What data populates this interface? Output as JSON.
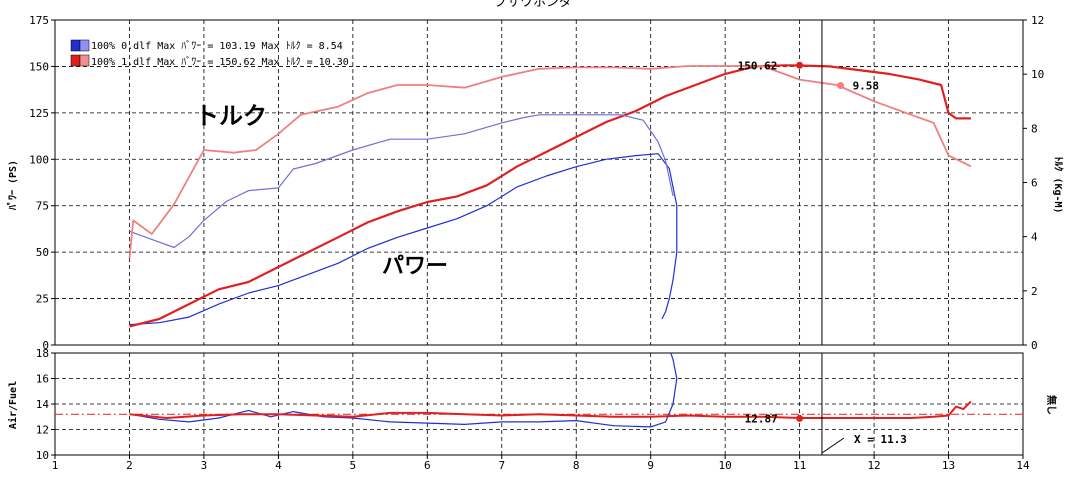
{
  "chart_data": [
    {
      "type": "line",
      "title": "ブサワホンダ",
      "ylabel_left": "ﾊﾟﾜｰ (PS)",
      "ylabel_right": "ﾄﾙｸ (Kg-M)",
      "ylim_left": [
        0,
        175
      ],
      "ylim_right": [
        0,
        12
      ],
      "xlim": [
        1,
        14
      ],
      "grid": true,
      "legend_position": "top-left",
      "legend": [
        {
          "label": "100% 0.dlf Max ﾊﾟﾜｰ = 103.19   Max ﾄﾙｸ = 8.54",
          "color": "#2030d0"
        },
        {
          "label": "100% 1.dlf Max ﾊﾟﾜｰ = 150.62   Max ﾄﾙｸ = 10.30",
          "color": "#e02020"
        }
      ],
      "annotations": {
        "torque_label": "トルク",
        "power_label": "パワー",
        "marker_power": "150.62",
        "marker_torque": "9.58"
      },
      "series": [
        {
          "name": "100% 0.dlf Max ﾊﾟﾜｰ = 103.19",
          "axis": "left",
          "color": "#2030d0",
          "x": [
            2.0,
            2.4,
            2.8,
            3.2,
            3.6,
            4.0,
            4.4,
            4.8,
            5.2,
            5.6,
            6.0,
            6.4,
            6.8,
            7.2,
            7.6,
            8.0,
            8.4,
            8.8,
            9.1,
            9.25,
            9.35,
            9.35,
            9.3,
            9.25,
            9.2,
            9.15
          ],
          "y": [
            11,
            12,
            15,
            22,
            28,
            32,
            38,
            44,
            52,
            58,
            63,
            68,
            75,
            85,
            91,
            96,
            100,
            102,
            103,
            95,
            75,
            50,
            35,
            25,
            18,
            14
          ]
        },
        {
          "name": "100% 1.dlf Max ﾊﾟﾜｰ = 150.62",
          "axis": "left",
          "color": "#e02020",
          "x": [
            2.0,
            2.4,
            2.8,
            3.2,
            3.6,
            4.0,
            4.4,
            4.8,
            5.2,
            5.6,
            6.0,
            6.4,
            6.8,
            7.2,
            7.6,
            8.0,
            8.4,
            8.8,
            9.2,
            9.6,
            10.0,
            10.4,
            10.8,
            11.0,
            11.4,
            11.8,
            12.2,
            12.6,
            12.9,
            13.0,
            13.1,
            13.3
          ],
          "y": [
            10,
            14,
            22,
            30,
            34,
            42,
            50,
            58,
            66,
            72,
            77,
            80,
            86,
            96,
            104,
            112,
            120,
            126,
            134,
            140,
            146,
            150,
            150.6,
            150.5,
            150,
            148,
            146,
            143,
            140,
            125,
            122,
            122
          ]
        },
        {
          "name": "100% 0.dlf Max ﾄﾙｸ = 8.54",
          "axis": "right",
          "color": "#7070d8",
          "x": [
            2.0,
            2.3,
            2.6,
            2.8,
            3.0,
            3.3,
            3.6,
            4.0,
            4.2,
            4.5,
            5.0,
            5.5,
            6.0,
            6.5,
            7.0,
            7.3,
            7.5,
            7.8,
            8.2,
            8.6,
            8.9,
            9.1,
            9.2,
            9.3
          ],
          "y": [
            4.2,
            3.9,
            3.6,
            4.0,
            4.6,
            5.3,
            5.7,
            5.8,
            6.5,
            6.7,
            7.2,
            7.6,
            7.6,
            7.8,
            8.2,
            8.4,
            8.5,
            8.5,
            8.5,
            8.5,
            8.3,
            7.5,
            6.8,
            5.5
          ]
        },
        {
          "name": "100% 1.dlf Max ﾄﾙｸ = 10.30",
          "axis": "right",
          "color": "#f08080",
          "x": [
            2.0,
            2.05,
            2.3,
            2.6,
            3.0,
            3.4,
            3.7,
            4.0,
            4.3,
            4.8,
            5.2,
            5.6,
            6.0,
            6.5,
            7.0,
            7.5,
            8.0,
            8.5,
            9.0,
            9.5,
            10.0,
            10.5,
            11.0,
            11.5,
            12.0,
            12.5,
            12.8,
            13.0,
            13.3
          ],
          "y": [
            3.2,
            4.6,
            4.1,
            5.2,
            7.2,
            7.1,
            7.2,
            7.8,
            8.5,
            8.8,
            9.3,
            9.6,
            9.6,
            9.5,
            9.9,
            10.2,
            10.25,
            10.25,
            10.2,
            10.3,
            10.3,
            10.3,
            9.8,
            9.6,
            9.0,
            8.5,
            8.2,
            7.0,
            6.6
          ]
        }
      ]
    },
    {
      "type": "line",
      "ylabel": "Air/Fuel",
      "ylabel_right": "無し",
      "ylim": [
        10,
        18
      ],
      "xlim": [
        1,
        14
      ],
      "xticks": [
        "1",
        "2",
        "3",
        "4",
        "5",
        "6",
        "7",
        "8",
        "9",
        "10",
        "11",
        "12",
        "13",
        "14"
      ],
      "reference_line": 13.2,
      "annotations": {
        "afr_marker": "12.87",
        "cursor_label": "X = 11.3"
      },
      "cursor_x": 11.3,
      "series": [
        {
          "name": "100% 0.dlf",
          "color": "#2030d0",
          "x": [
            2.0,
            2.4,
            2.8,
            3.2,
            3.6,
            3.9,
            4.2,
            4.6,
            5.0,
            5.5,
            6.0,
            6.5,
            7.0,
            7.5,
            8.0,
            8.5,
            9.0,
            9.2,
            9.3,
            9.35,
            9.3,
            9.27
          ],
          "y": [
            13.2,
            12.8,
            12.6,
            12.9,
            13.5,
            13.0,
            13.4,
            13.0,
            12.9,
            12.6,
            12.5,
            12.4,
            12.6,
            12.6,
            12.7,
            12.3,
            12.2,
            12.6,
            14.0,
            16.0,
            17.5,
            18.5
          ]
        },
        {
          "name": "100% 1.dlf",
          "color": "#e02020",
          "x": [
            2.0,
            2.5,
            3.0,
            3.5,
            4.0,
            4.5,
            5.0,
            5.5,
            6.0,
            6.5,
            7.0,
            7.5,
            8.0,
            8.5,
            9.0,
            9.5,
            10.0,
            10.5,
            11.0,
            11.5,
            12.0,
            12.5,
            12.8,
            13.0,
            13.1,
            13.2,
            13.3
          ],
          "y": [
            13.2,
            12.9,
            13.1,
            13.2,
            13.2,
            13.1,
            13.0,
            13.3,
            13.3,
            13.2,
            13.1,
            13.2,
            13.1,
            13.0,
            13.0,
            13.1,
            13.0,
            13.0,
            12.9,
            12.9,
            12.9,
            12.9,
            13.0,
            13.1,
            13.8,
            13.6,
            14.2
          ]
        }
      ]
    }
  ]
}
